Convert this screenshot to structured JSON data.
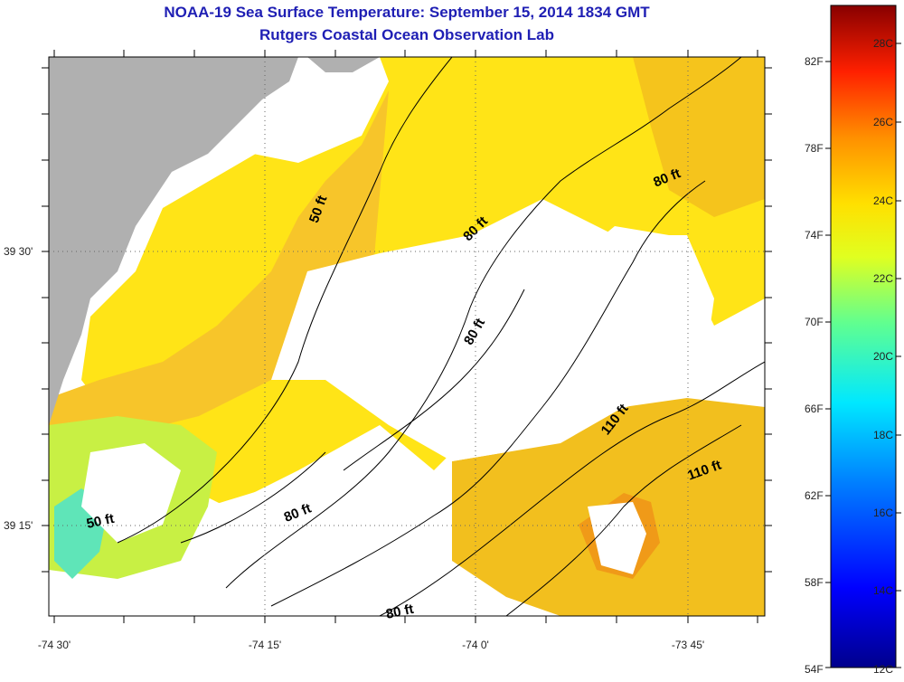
{
  "title": "NOAA-19 Sea Surface Temperature:  September 15, 2014 1834 GMT",
  "subtitle": "Rutgers Coastal Ocean Observation Lab",
  "x_ticks": [
    "-74 30'",
    "-74 15'",
    "-74 0'",
    "-73 45'"
  ],
  "y_ticks": [
    "39 30'",
    "39 15'"
  ],
  "contour_labels": [
    "50 ft",
    "80 ft",
    "80 ft",
    "80 ft",
    "80 ft",
    "80 ft",
    "110 ft",
    "110 ft",
    "50 ft"
  ],
  "colorbar": {
    "fahrenheit_labels": [
      "82F",
      "78F",
      "74F",
      "70F",
      "66F",
      "62F",
      "58F",
      "54F"
    ],
    "celsius_labels": [
      "28C",
      "26C",
      "24C",
      "22C",
      "20C",
      "18C",
      "16C",
      "14C",
      "12C"
    ]
  },
  "colors": {
    "land": "#b0b0b0",
    "title": "#1f1fb4",
    "warm": "#f5c41c",
    "mid": "#ffe417",
    "cool": "#28e0d6",
    "hot": "#e85a10"
  }
}
